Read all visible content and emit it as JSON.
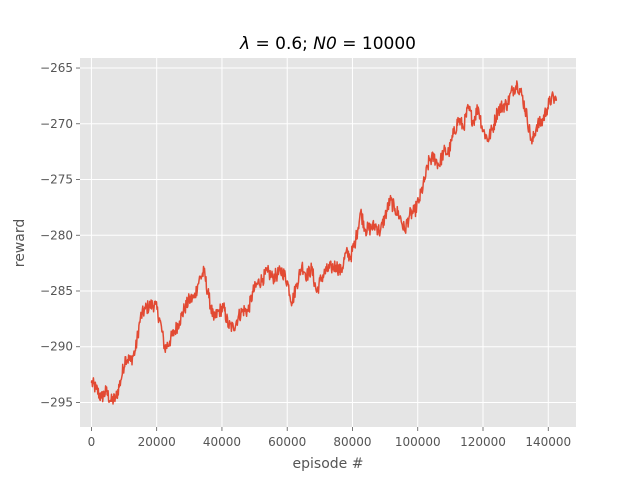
{
  "chart_data": {
    "type": "line",
    "title": "λ = 0.6; N0 = 10000",
    "title_parts": {
      "lambda_symbol": "λ",
      "lambda_eq": " = 0.6; ",
      "n0_symbol": "N0",
      "n0_eq": " = 10000"
    },
    "xlabel": "episode #",
    "ylabel": "reward",
    "xlim": [
      -3500,
      148500
    ],
    "ylim": [
      -297.2,
      -264.1
    ],
    "xticks": [
      0,
      20000,
      40000,
      60000,
      80000,
      100000,
      120000,
      140000
    ],
    "xtick_labels": [
      "0",
      "20000",
      "40000",
      "60000",
      "80000",
      "100000",
      "120000",
      "140000"
    ],
    "yticks": [
      -295,
      -290,
      -285,
      -280,
      -275,
      -270,
      -265
    ],
    "ytick_labels": [
      "−295",
      "−290",
      "−285",
      "−280",
      "−275",
      "−270",
      "−265"
    ],
    "grid": true,
    "series": [
      {
        "name": "reward",
        "color": "#E24A33",
        "x": [
          0,
          1500,
          3000,
          4500,
          6000,
          7500,
          9000,
          10500,
          12000,
          13500,
          15000,
          16500,
          18000,
          19500,
          21000,
          22500,
          24000,
          25500,
          27000,
          28500,
          30000,
          31500,
          33000,
          34500,
          36000,
          37500,
          39000,
          40500,
          42000,
          43500,
          45000,
          46500,
          48000,
          49500,
          51000,
          52500,
          54000,
          55500,
          57000,
          58500,
          60000,
          61500,
          63000,
          64500,
          66000,
          67500,
          69000,
          70500,
          72000,
          73500,
          75000,
          76500,
          78000,
          79500,
          81000,
          82500,
          84000,
          85500,
          87000,
          88500,
          90000,
          91500,
          93000,
          94500,
          96000,
          97500,
          99000,
          100500,
          102000,
          103500,
          105000,
          106500,
          108000,
          109500,
          111000,
          112500,
          114000,
          115500,
          117000,
          118500,
          120000,
          121500,
          123000,
          124500,
          126000,
          127500,
          129000,
          130500,
          132000,
          133500,
          135000,
          136500,
          138000,
          139500,
          141000,
          142500
        ],
        "values": [
          -293.2,
          -293.8,
          -294.6,
          -294.0,
          -294.9,
          -294.6,
          -293.0,
          -290.9,
          -291.3,
          -290.3,
          -287.4,
          -286.6,
          -286.3,
          -286.2,
          -287.6,
          -290.2,
          -289.5,
          -288.6,
          -287.7,
          -286.6,
          -285.8,
          -285.6,
          -284.0,
          -283.3,
          -285.6,
          -287.6,
          -286.8,
          -286.5,
          -288.1,
          -288.3,
          -287.3,
          -286.7,
          -286.8,
          -285.1,
          -284.3,
          -283.9,
          -283.3,
          -283.8,
          -283.5,
          -283.2,
          -284.1,
          -286.0,
          -284.3,
          -282.7,
          -283.6,
          -283.0,
          -285.1,
          -283.8,
          -283.2,
          -282.9,
          -282.7,
          -283.3,
          -281.6,
          -281.9,
          -280.4,
          -277.9,
          -279.5,
          -279.4,
          -279.1,
          -279.7,
          -278.3,
          -276.9,
          -277.6,
          -278.3,
          -279.6,
          -278.2,
          -277.9,
          -276.8,
          -275.2,
          -273.3,
          -273.0,
          -273.7,
          -272.5,
          -272.6,
          -270.9,
          -269.6,
          -270.3,
          -268.6,
          -269.8,
          -268.5,
          -270.6,
          -271.4,
          -270.4,
          -268.8,
          -268.4,
          -268.2,
          -267.0,
          -266.4,
          -267.5,
          -269.4,
          -271.8,
          -270.1,
          -269.9,
          -268.7,
          -267.7,
          -267.9
        ]
      }
    ]
  }
}
